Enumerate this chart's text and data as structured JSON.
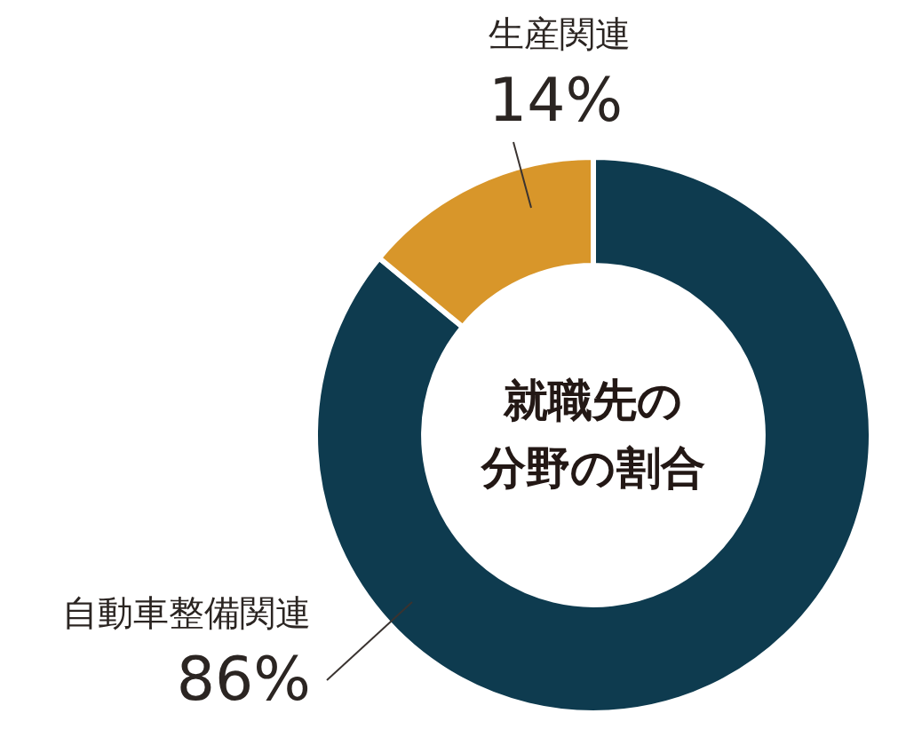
{
  "chart_data": {
    "type": "donut",
    "title": "就職先の分野の割合",
    "categories": [
      "自動車整備関連",
      "生産関連"
    ],
    "values": [
      86,
      14
    ],
    "colors": [
      "#0e3b4f",
      "#d8962a"
    ],
    "value_labels": [
      "86%",
      "14%"
    ],
    "legend": false
  }
}
